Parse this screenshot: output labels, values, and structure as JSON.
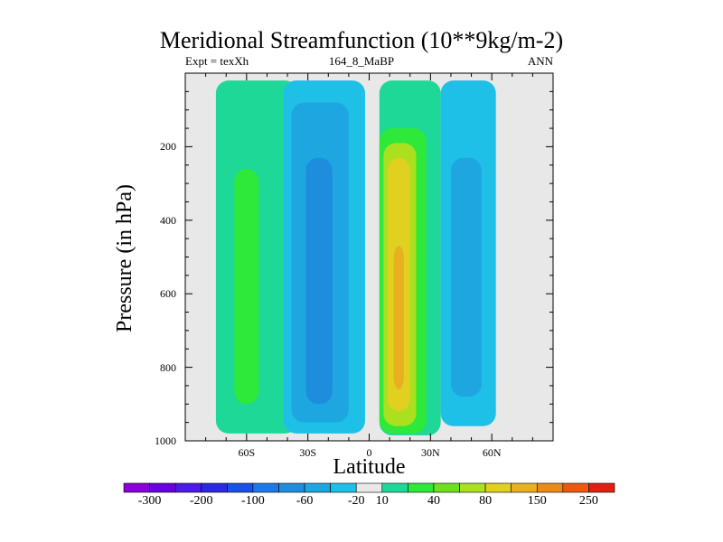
{
  "chart_data": {
    "type": "heatmap",
    "title": "Meridional Streamfunction (10**9kg/m-2)",
    "subtitle_left": "Expt = texXh",
    "subtitle_center": "164_8_MaBP",
    "subtitle_right": "ANN",
    "xlabel": "Latitude",
    "ylabel": "Pressure (in hPa)",
    "xlim": [
      -90,
      90
    ],
    "ylim": [
      1000,
      0
    ],
    "x_ticks": [
      {
        "value": -60,
        "label": "60S"
      },
      {
        "value": -30,
        "label": "30S"
      },
      {
        "value": 0,
        "label": "0"
      },
      {
        "value": 30,
        "label": "30N"
      },
      {
        "value": 60,
        "label": "60N"
      }
    ],
    "y_ticks": [
      {
        "value": 200,
        "label": "200"
      },
      {
        "value": 400,
        "label": "400"
      },
      {
        "value": 600,
        "label": "600"
      },
      {
        "value": 800,
        "label": "800"
      },
      {
        "value": 1000,
        "label": "1000"
      }
    ],
    "colorbar": {
      "colors": [
        "#8a00d8",
        "#6a00e0",
        "#4e1ae8",
        "#2a28e0",
        "#1a50e6",
        "#1f78e8",
        "#1e8edc",
        "#1ea6e0",
        "#1ec0e8",
        "#e8e8e8",
        "#1ed898",
        "#2ee83a",
        "#6ee020",
        "#aae020",
        "#e0d020",
        "#e8b020",
        "#ec8a18",
        "#ec5a10",
        "#e02010"
      ],
      "labels": [
        "-300",
        "-200",
        "-100",
        "-60",
        "-20",
        "10",
        "40",
        "80",
        "150",
        "250"
      ],
      "label_boundaries": [
        1,
        3,
        5,
        7,
        9,
        10,
        12,
        14,
        16,
        18
      ]
    },
    "regions": [
      {
        "name": "sh-high-lat-cell",
        "fill": "#1ed898",
        "lat_range": [
          -75,
          -35
        ],
        "p_range": [
          20,
          980
        ]
      },
      {
        "name": "sh-high-lat-core",
        "fill": "#2ee83a",
        "lat_range": [
          -66,
          -54
        ],
        "p_range": [
          260,
          900
        ]
      },
      {
        "name": "sh-ferrel-cell",
        "fill": "#1ec0e8",
        "lat_range": [
          -42,
          -2
        ],
        "p_range": [
          20,
          980
        ]
      },
      {
        "name": "sh-ferrel-core",
        "fill": "#1ea6e0",
        "lat_range": [
          -38,
          -10
        ],
        "p_range": [
          80,
          950
        ]
      },
      {
        "name": "sh-ferrel-inner",
        "fill": "#1e8edc",
        "lat_range": [
          -31,
          -18
        ],
        "p_range": [
          230,
          900
        ]
      },
      {
        "name": "hadley-cell-outer",
        "fill": "#1ed898",
        "lat_range": [
          5,
          35
        ],
        "p_range": [
          20,
          985
        ]
      },
      {
        "name": "hadley-cell-40",
        "fill": "#2ee83a",
        "lat_range": [
          5,
          28
        ],
        "p_range": [
          150,
          980
        ]
      },
      {
        "name": "hadley-cell-80",
        "fill": "#aae020",
        "lat_range": [
          7,
          23
        ],
        "p_range": [
          190,
          960
        ]
      },
      {
        "name": "hadley-cell-150",
        "fill": "#e0d020",
        "lat_range": [
          9,
          20
        ],
        "p_range": [
          230,
          920
        ]
      },
      {
        "name": "hadley-cell-250",
        "fill": "#e8b020",
        "lat_range": [
          12,
          17
        ],
        "p_range": [
          470,
          860
        ]
      },
      {
        "name": "nh-ferrel-cell",
        "fill": "#1ec0e8",
        "lat_range": [
          35,
          62
        ],
        "p_range": [
          20,
          960
        ]
      },
      {
        "name": "nh-ferrel-core",
        "fill": "#1ea6e0",
        "lat_range": [
          40,
          55
        ],
        "p_range": [
          230,
          880
        ]
      }
    ]
  }
}
